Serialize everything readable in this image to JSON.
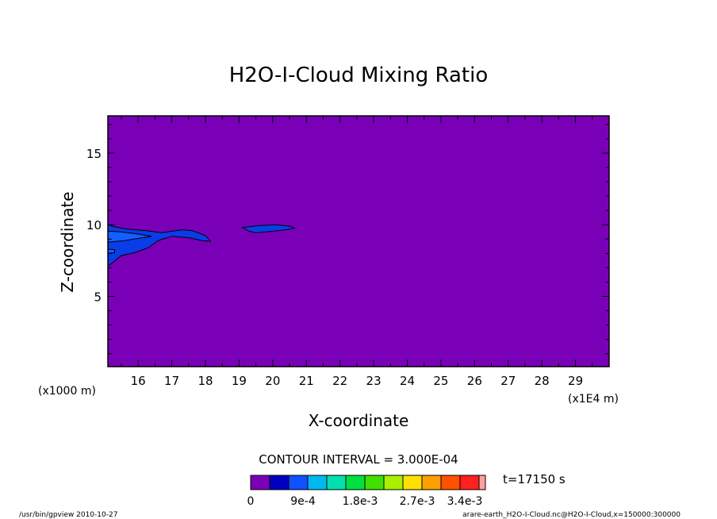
{
  "chart_data": {
    "type": "heatmap",
    "title": "H2O-I-Cloud Mixing Ratio",
    "xlabel": "X-coordinate",
    "ylabel": "Z-coordinate",
    "x_unit_left": "(x1000 m)",
    "x_unit_right": "(x1E4 m)",
    "xlim": [
      15.1,
      30
    ],
    "ylim": [
      0.1,
      17.6
    ],
    "x_ticks": [
      "16",
      "17",
      "18",
      "19",
      "20",
      "21",
      "22",
      "23",
      "24",
      "25",
      "26",
      "27",
      "28",
      "29"
    ],
    "y_ticks": [
      "5",
      "10",
      "15"
    ],
    "contour_interval_text": "CONTOUR INTERVAL = 3.000E-04",
    "time_text": "t=17150 s",
    "colorbar": {
      "labels": [
        "0",
        "9e-4",
        "1.8e-3",
        "2.7e-3",
        "3.4e-3"
      ],
      "colors": [
        "#7a00b8",
        "#0000c0",
        "#1050ff",
        "#00b8f0",
        "#00e0b0",
        "#00e040",
        "#40e000",
        "#a8f000",
        "#ffe000",
        "#ffa000",
        "#ff5000",
        "#ff2020",
        "#ffa0a0"
      ]
    },
    "background_color": "#7a00b8",
    "regions": [
      {
        "level": 1,
        "color": "#0a3ce8",
        "points": [
          [
            15.1,
            10.0
          ],
          [
            15.3,
            9.85
          ],
          [
            15.7,
            9.7
          ],
          [
            16.2,
            9.6
          ],
          [
            16.7,
            9.45
          ],
          [
            17.0,
            9.55
          ],
          [
            17.3,
            9.65
          ],
          [
            17.6,
            9.6
          ],
          [
            18.0,
            9.25
          ],
          [
            18.15,
            8.85
          ],
          [
            17.9,
            8.9
          ],
          [
            17.5,
            9.1
          ],
          [
            17.0,
            9.2
          ],
          [
            16.6,
            8.9
          ],
          [
            16.3,
            8.4
          ],
          [
            15.9,
            8.05
          ],
          [
            15.5,
            7.85
          ],
          [
            15.1,
            7.1
          ]
        ]
      },
      {
        "level": 2,
        "color": "#1260ff",
        "points": [
          [
            15.1,
            9.55
          ],
          [
            15.5,
            9.5
          ],
          [
            16.0,
            9.35
          ],
          [
            16.4,
            9.2
          ],
          [
            16.0,
            9.05
          ],
          [
            15.6,
            8.9
          ],
          [
            15.2,
            8.8
          ],
          [
            15.1,
            8.8
          ]
        ]
      },
      {
        "level": 2,
        "color": "#1260ff",
        "points": [
          [
            15.1,
            8.3
          ],
          [
            15.3,
            8.25
          ],
          [
            15.3,
            8.05
          ],
          [
            15.1,
            8.0
          ]
        ]
      },
      {
        "level": 1,
        "color": "#0a3ce8",
        "points": [
          [
            19.1,
            9.8
          ],
          [
            19.6,
            9.95
          ],
          [
            20.1,
            10.0
          ],
          [
            20.5,
            9.9
          ],
          [
            20.65,
            9.75
          ],
          [
            20.2,
            9.6
          ],
          [
            19.8,
            9.5
          ],
          [
            19.5,
            9.45
          ],
          [
            19.3,
            9.55
          ]
        ]
      }
    ]
  },
  "footer": {
    "left": "/usr/bin/gpview  2010-10-27",
    "right": "arare-earth_H2O-I-Cloud.nc@H2O-I-Cloud,x=150000:300000"
  }
}
